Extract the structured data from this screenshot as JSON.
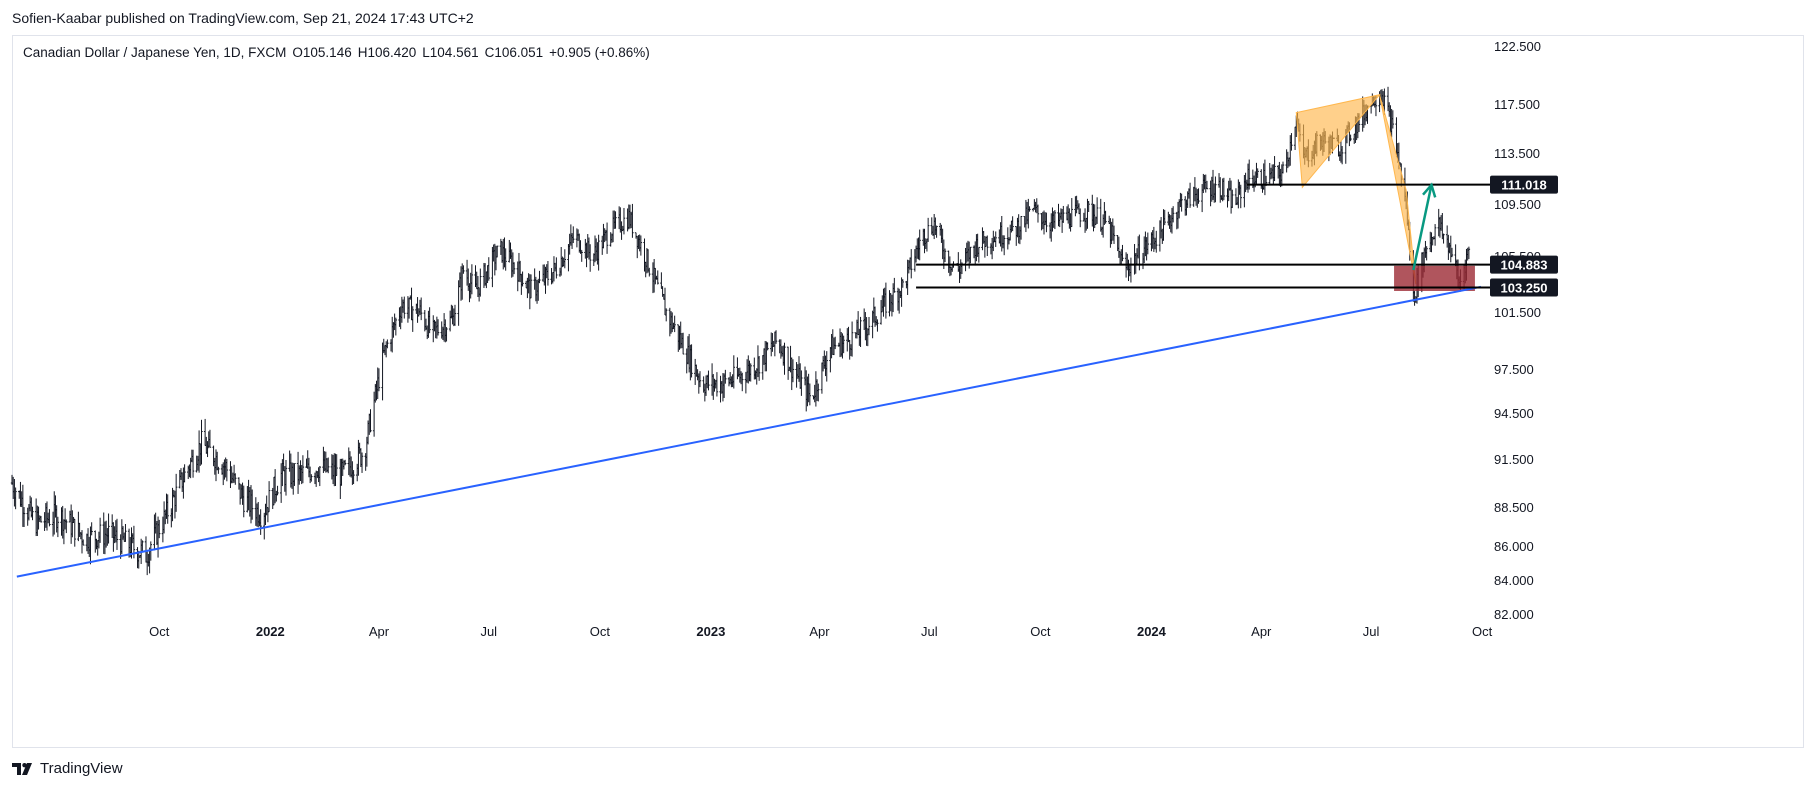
{
  "header": {
    "publisher": "Sofien-Kaabar published on TradingView.com, Sep 21, 2024 17:43 UTC+2"
  },
  "legend": {
    "symbol": "Canadian Dollar / Japanese Yen, 1D, FXCM",
    "open": "O105.146",
    "high": "H106.420",
    "low": "L104.561",
    "close": "C106.051",
    "change": "+0.905 (+0.86%)"
  },
  "footer": {
    "brand": "TradingView"
  },
  "colors": {
    "trendline": "#2962ff",
    "pattern_fill": "#ffb74d",
    "target_arrow": "#089981",
    "zone": "#9c2a35",
    "candle": "#131722",
    "label_bg": "#131722"
  },
  "chart_data": {
    "type": "ohlc",
    "symbol": "CADJPY",
    "timeframe": "1D",
    "x_range": [
      "2021-06-01",
      "2024-10-05"
    ],
    "ylim": [
      82.0,
      122.5
    ],
    "price_axis_ticks": [
      "122.500",
      "117.500",
      "113.500",
      "109.500",
      "105.500",
      "101.500",
      "97.500",
      "94.500",
      "91.500",
      "88.500",
      "86.000",
      "84.000",
      "82.000"
    ],
    "time_axis_ticks": [
      {
        "label": "Oct",
        "date": "2021-10-01",
        "bold": false
      },
      {
        "label": "2022",
        "date": "2022-01-01",
        "bold": true
      },
      {
        "label": "Apr",
        "date": "2022-04-01",
        "bold": false
      },
      {
        "label": "Jul",
        "date": "2022-07-01",
        "bold": false
      },
      {
        "label": "Oct",
        "date": "2022-10-01",
        "bold": false
      },
      {
        "label": "2023",
        "date": "2023-01-01",
        "bold": true
      },
      {
        "label": "Apr",
        "date": "2023-04-01",
        "bold": false
      },
      {
        "label": "Jul",
        "date": "2023-07-01",
        "bold": false
      },
      {
        "label": "Oct",
        "date": "2023-10-01",
        "bold": false
      },
      {
        "label": "2024",
        "date": "2024-01-01",
        "bold": true
      },
      {
        "label": "Apr",
        "date": "2024-04-01",
        "bold": false
      },
      {
        "label": "Jul",
        "date": "2024-07-01",
        "bold": false
      },
      {
        "label": "Oct",
        "date": "2024-10-01",
        "bold": false
      }
    ],
    "price_path": [
      [
        "2021-06-01",
        90.0
      ],
      [
        "2021-06-20",
        87.5
      ],
      [
        "2021-07-10",
        88.0
      ],
      [
        "2021-08-01",
        86.5
      ],
      [
        "2021-08-20",
        86.8
      ],
      [
        "2021-09-20",
        85.5
      ],
      [
        "2021-10-10",
        88.5
      ],
      [
        "2021-10-25",
        91.0
      ],
      [
        "2021-11-05",
        92.5
      ],
      [
        "2021-11-25",
        91.0
      ],
      [
        "2021-12-10",
        89.0
      ],
      [
        "2021-12-25",
        88.0
      ],
      [
        "2022-01-10",
        90.5
      ],
      [
        "2022-01-25",
        90.5
      ],
      [
        "2022-02-10",
        91.0
      ],
      [
        "2022-03-01",
        90.5
      ],
      [
        "2022-03-20",
        92.0
      ],
      [
        "2022-04-05",
        98.5
      ],
      [
        "2022-04-20",
        102.0
      ],
      [
        "2022-05-05",
        101.5
      ],
      [
        "2022-05-15",
        100.0
      ],
      [
        "2022-06-01",
        101.0
      ],
      [
        "2022-06-10",
        104.5
      ],
      [
        "2022-06-20",
        103.0
      ],
      [
        "2022-07-10",
        106.0
      ],
      [
        "2022-07-25",
        104.5
      ],
      [
        "2022-08-05",
        103.0
      ],
      [
        "2022-08-25",
        104.5
      ],
      [
        "2022-09-10",
        107.0
      ],
      [
        "2022-09-25",
        105.5
      ],
      [
        "2022-10-10",
        107.5
      ],
      [
        "2022-10-25",
        108.5
      ],
      [
        "2022-11-10",
        105.0
      ],
      [
        "2022-11-25",
        101.5
      ],
      [
        "2022-12-10",
        99.0
      ],
      [
        "2022-12-25",
        96.5
      ],
      [
        "2023-01-10",
        96.5
      ],
      [
        "2023-01-25",
        97.0
      ],
      [
        "2023-02-10",
        98.0
      ],
      [
        "2023-02-25",
        99.5
      ],
      [
        "2023-03-10",
        97.5
      ],
      [
        "2023-03-25",
        95.5
      ],
      [
        "2023-04-10",
        99.0
      ],
      [
        "2023-04-25",
        99.5
      ],
      [
        "2023-05-10",
        100.5
      ],
      [
        "2023-05-25",
        102.0
      ],
      [
        "2023-06-10",
        103.5
      ],
      [
        "2023-06-25",
        107.0
      ],
      [
        "2023-07-05",
        108.0
      ],
      [
        "2023-07-15",
        105.5
      ],
      [
        "2023-07-25",
        104.5
      ],
      [
        "2023-08-10",
        106.5
      ],
      [
        "2023-08-25",
        107.0
      ],
      [
        "2023-09-10",
        107.5
      ],
      [
        "2023-09-25",
        109.0
      ],
      [
        "2023-10-10",
        108.0
      ],
      [
        "2023-10-25",
        108.5
      ],
      [
        "2023-11-10",
        109.0
      ],
      [
        "2023-11-25",
        108.0
      ],
      [
        "2023-12-10",
        104.5
      ],
      [
        "2023-12-25",
        106.0
      ],
      [
        "2024-01-10",
        107.5
      ],
      [
        "2024-01-25",
        109.5
      ],
      [
        "2024-02-10",
        110.5
      ],
      [
        "2024-02-25",
        111.0
      ],
      [
        "2024-03-10",
        109.5
      ],
      [
        "2024-03-20",
        111.5
      ],
      [
        "2024-04-05",
        111.5
      ],
      [
        "2024-04-20",
        112.0
      ],
      [
        "2024-04-30",
        116.5
      ],
      [
        "2024-05-05",
        113.0
      ],
      [
        "2024-05-20",
        114.5
      ],
      [
        "2024-06-05",
        114.0
      ],
      [
        "2024-06-20",
        116.0
      ],
      [
        "2024-07-03",
        118.0
      ],
      [
        "2024-07-10",
        118.5
      ],
      [
        "2024-07-20",
        115.0
      ],
      [
        "2024-07-30",
        109.5
      ],
      [
        "2024-08-05",
        102.5
      ],
      [
        "2024-08-15",
        106.0
      ],
      [
        "2024-08-25",
        108.0
      ],
      [
        "2024-09-05",
        106.0
      ],
      [
        "2024-09-12",
        103.5
      ],
      [
        "2024-09-20",
        106.05
      ]
    ],
    "annotations": {
      "trendline": [
        [
          "2021-06-05",
          84.2
        ],
        [
          "2024-09-30",
          103.3
        ]
      ],
      "pattern_triangle_1": [
        [
          "2024-04-30",
          116.8
        ],
        [
          "2024-07-08",
          118.3
        ],
        [
          "2024-05-05",
          110.8
        ]
      ],
      "pattern_triangle_2": [
        [
          "2024-07-08",
          118.3
        ],
        [
          "2024-07-30",
          110.6
        ],
        [
          "2024-08-07",
          103.5
        ]
      ],
      "support_zone": {
        "start": "2024-07-20",
        "end": "2024-09-25",
        "low": 103.0,
        "high": 104.8
      },
      "target_arrow": [
        [
          "2024-08-05",
          104.5
        ],
        [
          "2024-08-20",
          111.0
        ]
      ],
      "levels": [
        {
          "price": 111.018,
          "label": "111.018",
          "start": "2024-03-20"
        },
        {
          "price": 104.883,
          "label": "104.883",
          "start": "2023-06-20"
        },
        {
          "price": 103.25,
          "label": "103.250",
          "start": "2023-06-20"
        }
      ]
    }
  }
}
